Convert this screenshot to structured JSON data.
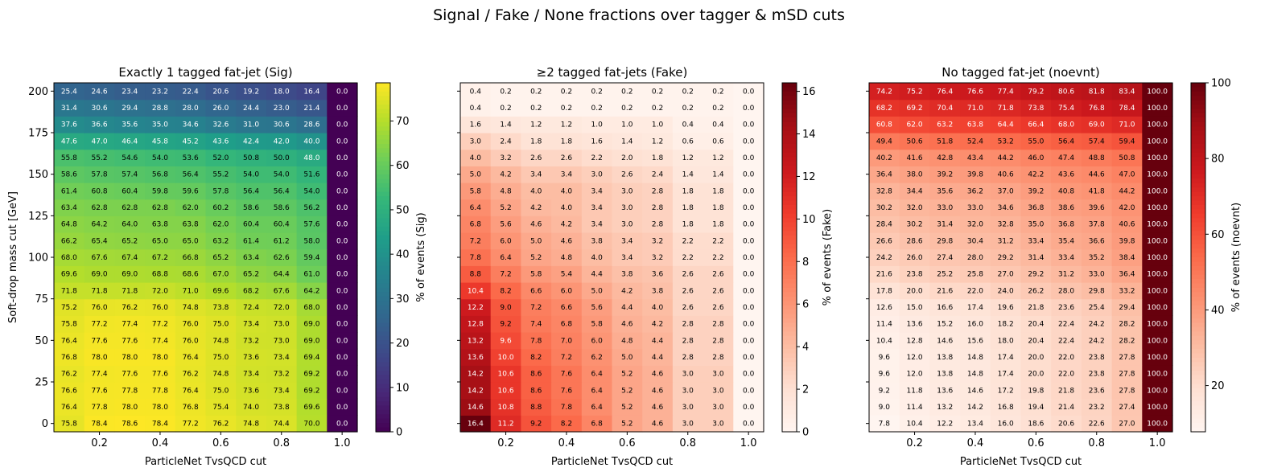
{
  "figure": {
    "suptitle": "Signal / Fake / None fractions over tagger & mSD cuts"
  },
  "chart_data": [
    {
      "type": "heatmap",
      "title": "Exactly 1 tagged fat-jet (Sig)",
      "xlabel": "ParticleNet TvsQCD cut",
      "ylabel": "Soft-drop mass cut [GeV]",
      "x": [
        0.1,
        0.2,
        0.3,
        0.4,
        0.5,
        0.6,
        0.7,
        0.8,
        0.9,
        1.0
      ],
      "y": [
        0,
        10,
        20,
        30,
        40,
        50,
        60,
        70,
        80,
        90,
        100,
        110,
        120,
        130,
        140,
        150,
        160,
        170,
        180,
        190,
        200
      ],
      "xticks": [
        "0.2",
        "0.4",
        "0.6",
        "0.8",
        "1.0"
      ],
      "yticks": [
        "0",
        "25",
        "50",
        "75",
        "100",
        "125",
        "150",
        "175",
        "200"
      ],
      "colormap": "viridis",
      "colorbar_label": "% of events (Sig)",
      "vmin": 0,
      "vmax": 78.6,
      "colorbar_ticks": [
        "0",
        "10",
        "20",
        "30",
        "40",
        "50",
        "60",
        "70"
      ],
      "values": [
        [
          75.8,
          78.4,
          78.6,
          78.4,
          77.2,
          76.2,
          74.8,
          74.4,
          70.0,
          0.0
        ],
        [
          76.4,
          77.8,
          78.0,
          78.0,
          76.8,
          75.4,
          74.0,
          73.8,
          69.6,
          0.0
        ],
        [
          76.6,
          77.6,
          77.8,
          77.8,
          76.4,
          75.0,
          73.6,
          73.4,
          69.2,
          0.0
        ],
        [
          76.2,
          77.4,
          77.6,
          77.6,
          76.2,
          74.8,
          73.4,
          73.2,
          69.2,
          0.0
        ],
        [
          76.8,
          78.0,
          78.0,
          78.0,
          76.4,
          75.0,
          73.6,
          73.4,
          69.4,
          0.0
        ],
        [
          76.4,
          77.6,
          77.6,
          77.4,
          76.0,
          74.8,
          73.2,
          73.0,
          69.0,
          0.0
        ],
        [
          75.8,
          77.2,
          77.4,
          77.2,
          76.0,
          75.0,
          73.4,
          73.0,
          69.0,
          0.0
        ],
        [
          75.2,
          76.0,
          76.2,
          76.0,
          74.8,
          73.8,
          72.4,
          72.0,
          68.0,
          0.0
        ],
        [
          71.8,
          71.8,
          71.8,
          72.0,
          71.0,
          69.6,
          68.2,
          67.6,
          64.2,
          0.0
        ],
        [
          69.6,
          69.0,
          69.0,
          68.8,
          68.6,
          67.0,
          65.2,
          64.4,
          61.0,
          0.0
        ],
        [
          68.0,
          67.6,
          67.4,
          67.2,
          66.8,
          65.2,
          63.4,
          62.6,
          59.4,
          0.0
        ],
        [
          66.2,
          65.4,
          65.2,
          65.0,
          65.0,
          63.2,
          61.4,
          61.2,
          58.0,
          0.0
        ],
        [
          64.8,
          64.2,
          64.0,
          63.8,
          63.8,
          62.0,
          60.4,
          60.4,
          57.6,
          0.0
        ],
        [
          63.4,
          62.8,
          62.8,
          62.8,
          62.0,
          60.2,
          58.6,
          58.6,
          56.2,
          0.0
        ],
        [
          61.4,
          60.8,
          60.4,
          59.8,
          59.6,
          57.8,
          56.4,
          56.4,
          54.0,
          0.0
        ],
        [
          58.6,
          57.8,
          57.4,
          56.8,
          56.4,
          55.2,
          54.0,
          54.0,
          51.6,
          0.0
        ],
        [
          55.8,
          55.2,
          54.6,
          54.0,
          53.6,
          52.0,
          50.8,
          50.0,
          48.0,
          0.0
        ],
        [
          47.6,
          47.0,
          46.4,
          45.8,
          45.2,
          43.6,
          42.4,
          42.0,
          40.0,
          0.0
        ],
        [
          37.6,
          36.6,
          35.6,
          35.0,
          34.6,
          32.6,
          31.0,
          30.6,
          28.6,
          0.0
        ],
        [
          31.4,
          30.6,
          29.4,
          28.8,
          28.0,
          26.0,
          24.4,
          23.0,
          21.4,
          0.0
        ],
        [
          25.4,
          24.6,
          23.4,
          23.2,
          22.4,
          20.6,
          19.2,
          18.0,
          16.4,
          0.0
        ]
      ]
    },
    {
      "type": "heatmap",
      "title": "≥2 tagged fat-jets (Fake)",
      "xlabel": "ParticleNet TvsQCD cut",
      "ylabel": "",
      "x": [
        0.1,
        0.2,
        0.3,
        0.4,
        0.5,
        0.6,
        0.7,
        0.8,
        0.9,
        1.0
      ],
      "y": [
        0,
        10,
        20,
        30,
        40,
        50,
        60,
        70,
        80,
        90,
        100,
        110,
        120,
        130,
        140,
        150,
        160,
        170,
        180,
        190,
        200
      ],
      "xticks": [
        "0.2",
        "0.4",
        "0.6",
        "0.8",
        "1.0"
      ],
      "yticks": [
        "0",
        "25",
        "50",
        "75",
        "100",
        "125",
        "150",
        "175",
        "200"
      ],
      "colormap": "reds",
      "colorbar_label": "% of events (Fake)",
      "vmin": 0,
      "vmax": 16.4,
      "colorbar_ticks": [
        "0",
        "2",
        "4",
        "6",
        "8",
        "10",
        "12",
        "14",
        "16"
      ],
      "values": [
        [
          16.4,
          11.2,
          9.2,
          8.2,
          6.8,
          5.2,
          4.6,
          3.0,
          3.0,
          0.0
        ],
        [
          14.6,
          10.8,
          8.8,
          7.8,
          6.4,
          5.2,
          4.6,
          3.0,
          3.0,
          0.0
        ],
        [
          14.2,
          10.6,
          8.6,
          7.6,
          6.4,
          5.2,
          4.6,
          3.0,
          3.0,
          0.0
        ],
        [
          14.2,
          10.6,
          8.6,
          7.6,
          6.4,
          5.2,
          4.6,
          3.0,
          3.0,
          0.0
        ],
        [
          13.6,
          10.0,
          8.2,
          7.2,
          6.2,
          5.0,
          4.4,
          2.8,
          2.8,
          0.0
        ],
        [
          13.2,
          9.6,
          7.8,
          7.0,
          6.0,
          4.8,
          4.4,
          2.8,
          2.8,
          0.0
        ],
        [
          12.8,
          9.2,
          7.4,
          6.8,
          5.8,
          4.6,
          4.2,
          2.8,
          2.8,
          0.0
        ],
        [
          12.2,
          9.0,
          7.2,
          6.6,
          5.6,
          4.4,
          4.0,
          2.6,
          2.6,
          0.0
        ],
        [
          10.4,
          8.2,
          6.6,
          6.0,
          5.0,
          4.2,
          3.8,
          2.6,
          2.6,
          0.0
        ],
        [
          8.8,
          7.2,
          5.8,
          5.4,
          4.4,
          3.8,
          3.6,
          2.6,
          2.6,
          0.0
        ],
        [
          7.8,
          6.4,
          5.2,
          4.8,
          4.0,
          3.4,
          3.2,
          2.2,
          2.2,
          0.0
        ],
        [
          7.2,
          6.0,
          5.0,
          4.6,
          3.8,
          3.4,
          3.2,
          2.2,
          2.2,
          0.0
        ],
        [
          6.8,
          5.6,
          4.6,
          4.2,
          3.4,
          3.0,
          2.8,
          1.8,
          1.8,
          0.0
        ],
        [
          6.4,
          5.2,
          4.2,
          4.0,
          3.4,
          3.0,
          2.8,
          1.8,
          1.8,
          0.0
        ],
        [
          5.8,
          4.8,
          4.0,
          4.0,
          3.4,
          3.0,
          2.8,
          1.8,
          1.8,
          0.0
        ],
        [
          5.0,
          4.2,
          3.4,
          3.4,
          3.0,
          2.6,
          2.4,
          1.4,
          1.4,
          0.0
        ],
        [
          4.0,
          3.2,
          2.6,
          2.6,
          2.2,
          2.0,
          1.8,
          1.2,
          1.2,
          0.0
        ],
        [
          3.0,
          2.4,
          1.8,
          1.8,
          1.6,
          1.4,
          1.2,
          0.6,
          0.6,
          0.0
        ],
        [
          1.6,
          1.4,
          1.2,
          1.2,
          1.0,
          1.0,
          1.0,
          0.4,
          0.4,
          0.0
        ],
        [
          0.4,
          0.2,
          0.2,
          0.2,
          0.2,
          0.2,
          0.2,
          0.2,
          0.2,
          0.0
        ],
        [
          0.4,
          0.2,
          0.2,
          0.2,
          0.2,
          0.2,
          0.2,
          0.2,
          0.2,
          0.0
        ]
      ]
    },
    {
      "type": "heatmap",
      "title": "No tagged fat-jet (noevnt)",
      "xlabel": "ParticleNet TvsQCD cut",
      "ylabel": "",
      "x": [
        0.1,
        0.2,
        0.3,
        0.4,
        0.5,
        0.6,
        0.7,
        0.8,
        0.9,
        1.0
      ],
      "y": [
        0,
        10,
        20,
        30,
        40,
        50,
        60,
        70,
        80,
        90,
        100,
        110,
        120,
        130,
        140,
        150,
        160,
        170,
        180,
        190,
        200
      ],
      "xticks": [
        "0.2",
        "0.4",
        "0.6",
        "0.8",
        "1.0"
      ],
      "yticks": [
        "0",
        "25",
        "50",
        "75",
        "100",
        "125",
        "150",
        "175",
        "200"
      ],
      "colormap": "reds",
      "colorbar_label": "% of events (noevnt)",
      "vmin": 7.8,
      "vmax": 100,
      "colorbar_ticks": [
        "20",
        "40",
        "60",
        "80",
        "100"
      ],
      "values": [
        [
          7.8,
          10.4,
          12.2,
          13.4,
          16.0,
          18.6,
          20.6,
          22.6,
          27.0,
          100.0
        ],
        [
          9.0,
          11.4,
          13.2,
          14.2,
          16.8,
          19.4,
          21.4,
          23.2,
          27.4,
          100.0
        ],
        [
          9.2,
          11.8,
          13.6,
          14.6,
          17.2,
          19.8,
          21.8,
          23.6,
          27.8,
          100.0
        ],
        [
          9.6,
          12.0,
          13.8,
          14.8,
          17.4,
          20.0,
          22.0,
          23.8,
          27.8,
          100.0
        ],
        [
          9.6,
          12.0,
          13.8,
          14.8,
          17.4,
          20.0,
          22.0,
          23.8,
          27.8,
          100.0
        ],
        [
          10.4,
          12.8,
          14.6,
          15.6,
          18.0,
          20.4,
          22.4,
          24.2,
          28.2,
          100.0
        ],
        [
          11.4,
          13.6,
          15.2,
          16.0,
          18.2,
          20.4,
          22.4,
          24.2,
          28.2,
          100.0
        ],
        [
          12.6,
          15.0,
          16.6,
          17.4,
          19.6,
          21.8,
          23.6,
          25.4,
          29.4,
          100.0
        ],
        [
          17.8,
          20.0,
          21.6,
          22.0,
          24.0,
          26.2,
          28.0,
          29.8,
          33.2,
          100.0
        ],
        [
          21.6,
          23.8,
          25.2,
          25.8,
          27.0,
          29.2,
          31.2,
          33.0,
          36.4,
          100.0
        ],
        [
          24.2,
          26.0,
          27.4,
          28.0,
          29.2,
          31.4,
          33.4,
          35.2,
          38.4,
          100.0
        ],
        [
          26.6,
          28.6,
          29.8,
          30.4,
          31.2,
          33.4,
          35.4,
          36.6,
          39.8,
          100.0
        ],
        [
          28.4,
          30.2,
          31.4,
          32.0,
          32.8,
          35.0,
          36.8,
          37.8,
          40.6,
          100.0
        ],
        [
          30.2,
          32.0,
          33.0,
          33.0,
          34.6,
          36.8,
          38.6,
          39.6,
          42.0,
          100.0
        ],
        [
          32.8,
          34.4,
          35.6,
          36.2,
          37.0,
          39.2,
          40.8,
          41.8,
          44.2,
          100.0
        ],
        [
          36.4,
          38.0,
          39.2,
          39.8,
          40.6,
          42.2,
          43.6,
          44.6,
          47.0,
          100.0
        ],
        [
          40.2,
          41.6,
          42.8,
          43.4,
          44.2,
          46.0,
          47.4,
          48.8,
          50.8,
          100.0
        ],
        [
          49.4,
          50.6,
          51.8,
          52.4,
          53.2,
          55.0,
          56.4,
          57.4,
          59.4,
          100.0
        ],
        [
          60.8,
          62.0,
          63.2,
          63.8,
          64.4,
          66.4,
          68.0,
          69.0,
          71.0,
          100.0
        ],
        [
          68.2,
          69.2,
          70.4,
          71.0,
          71.8,
          73.8,
          75.4,
          76.8,
          78.4,
          100.0
        ],
        [
          74.2,
          75.2,
          76.4,
          76.6,
          77.4,
          79.2,
          80.6,
          81.8,
          83.4,
          100.0
        ]
      ]
    }
  ]
}
